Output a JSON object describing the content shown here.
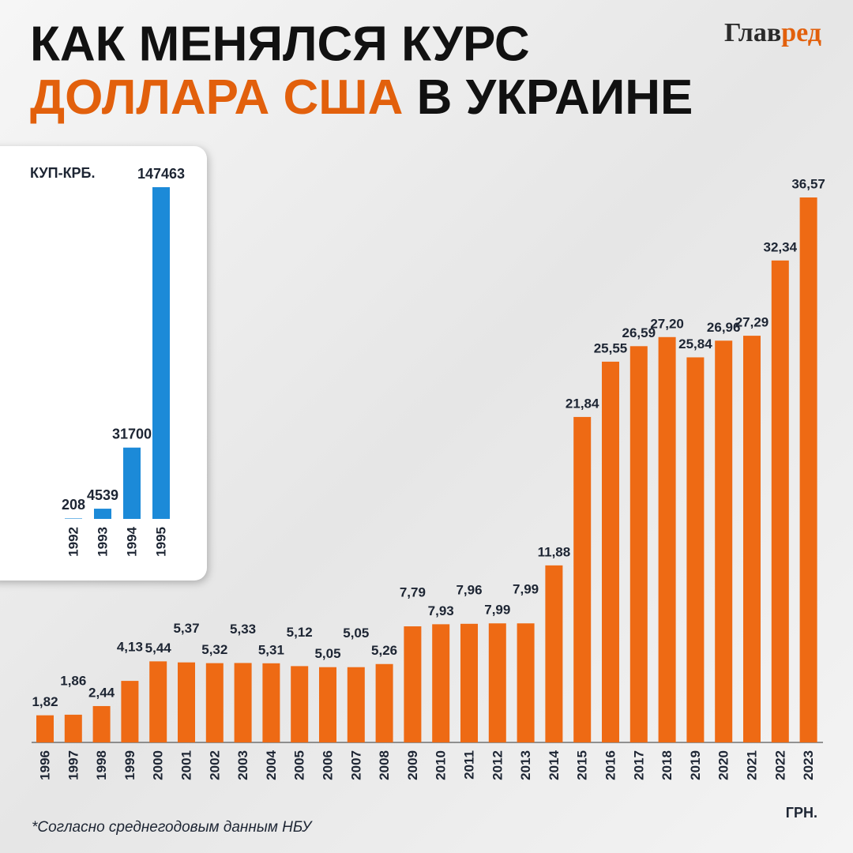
{
  "header": {
    "title_line1": "КАК МЕНЯЛСЯ КУРС",
    "title_highlight": "ДОЛЛАРА США",
    "title_rest": "В УКРАИНЕ",
    "logo_part1": "Глав",
    "logo_part2": "ред"
  },
  "footnote": "*Согласно среднегодовым данным НБУ",
  "chart_data": [
    {
      "type": "bar",
      "unit_label": "КУП-КРБ.",
      "color": "#1c8ad8",
      "categories": [
        "1992",
        "1993",
        "1994",
        "1995"
      ],
      "values": [
        208,
        4539,
        31700,
        147463
      ]
    },
    {
      "type": "bar",
      "unit_label": "ГРН.",
      "color": "#ee6a14",
      "categories": [
        "1996",
        "1997",
        "1998",
        "1999",
        "2000",
        "2001",
        "2002",
        "2003",
        "2004",
        "2005",
        "2006",
        "2007",
        "2008",
        "2009",
        "2010",
        "2011",
        "2012",
        "2013",
        "2014",
        "2015",
        "2016",
        "2017",
        "2018",
        "2019",
        "2020",
        "2021",
        "2022",
        "2023"
      ],
      "values": [
        1.82,
        1.86,
        2.44,
        4.13,
        5.44,
        5.37,
        5.32,
        5.33,
        5.31,
        5.12,
        5.05,
        5.05,
        5.26,
        7.79,
        7.93,
        7.96,
        7.99,
        7.99,
        11.88,
        21.84,
        25.55,
        26.59,
        27.2,
        25.84,
        26.96,
        27.29,
        32.34,
        36.57
      ],
      "value_labels": [
        "1,82",
        "1,86",
        "2,44",
        "4,13",
        "5,44",
        "5,37",
        "5,32",
        "5,33",
        "5,31",
        "5,12",
        "5,05",
        "5,05",
        "5,26",
        "7,79",
        "7,93",
        "7,96",
        "7,99",
        "7,99",
        "11,88",
        "21,84",
        "25,55",
        "26,59",
        "27,20",
        "25,84",
        "26,96",
        "27,29",
        "32,34",
        "36,57"
      ]
    }
  ]
}
